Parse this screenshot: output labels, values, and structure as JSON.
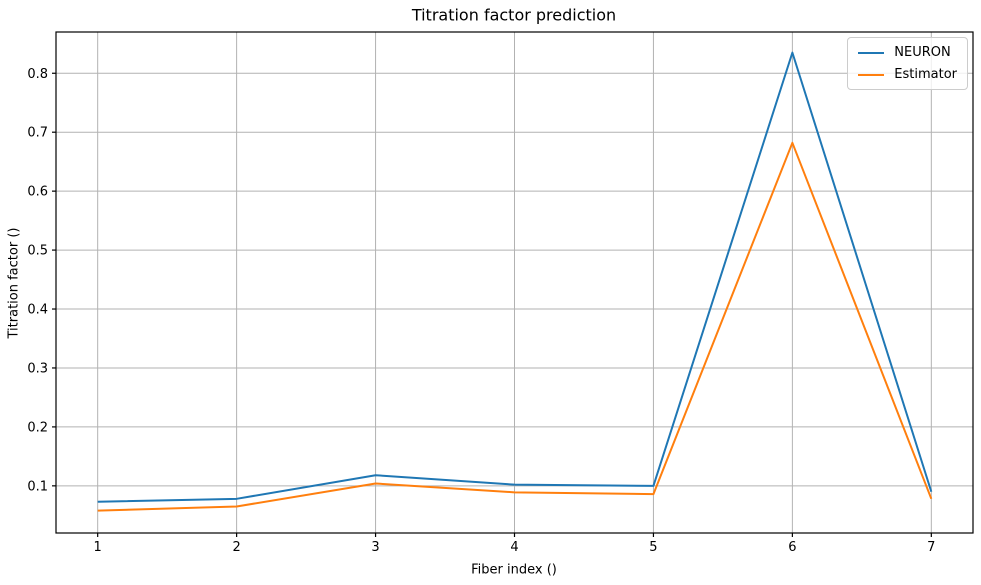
{
  "chart_data": {
    "type": "line",
    "title": "Titration factor prediction",
    "xlabel": "Fiber index ()",
    "ylabel": "Titration factor ()",
    "x": [
      1,
      2,
      3,
      4,
      5,
      6,
      7
    ],
    "series": [
      {
        "name": "NEURON",
        "color": "#1f77b4",
        "values": [
          0.073,
          0.078,
          0.118,
          0.102,
          0.1,
          0.835,
          0.09
        ]
      },
      {
        "name": "Estimator",
        "color": "#ff7f0e",
        "values": [
          0.058,
          0.065,
          0.104,
          0.089,
          0.086,
          0.682,
          0.078
        ]
      }
    ],
    "xlim": [
      0.7,
      7.3
    ],
    "ylim": [
      0.02,
      0.87
    ],
    "xticks": [
      {
        "value": 1,
        "label": "1"
      },
      {
        "value": 2,
        "label": "2"
      },
      {
        "value": 3,
        "label": "3"
      },
      {
        "value": 4,
        "label": "4"
      },
      {
        "value": 5,
        "label": "5"
      },
      {
        "value": 6,
        "label": "6"
      },
      {
        "value": 7,
        "label": "7"
      }
    ],
    "yticks": [
      {
        "value": 0.1,
        "label": "0.1"
      },
      {
        "value": 0.2,
        "label": "0.2"
      },
      {
        "value": 0.3,
        "label": "0.3"
      },
      {
        "value": 0.4,
        "label": "0.4"
      },
      {
        "value": 0.5,
        "label": "0.5"
      },
      {
        "value": 0.6,
        "label": "0.6"
      },
      {
        "value": 0.7,
        "label": "0.7"
      },
      {
        "value": 0.8,
        "label": "0.8"
      }
    ],
    "grid": true,
    "legend_position": "upper right",
    "grid_color": "#b2b2b2",
    "spine_color": "#000000",
    "background": "#ffffff"
  }
}
